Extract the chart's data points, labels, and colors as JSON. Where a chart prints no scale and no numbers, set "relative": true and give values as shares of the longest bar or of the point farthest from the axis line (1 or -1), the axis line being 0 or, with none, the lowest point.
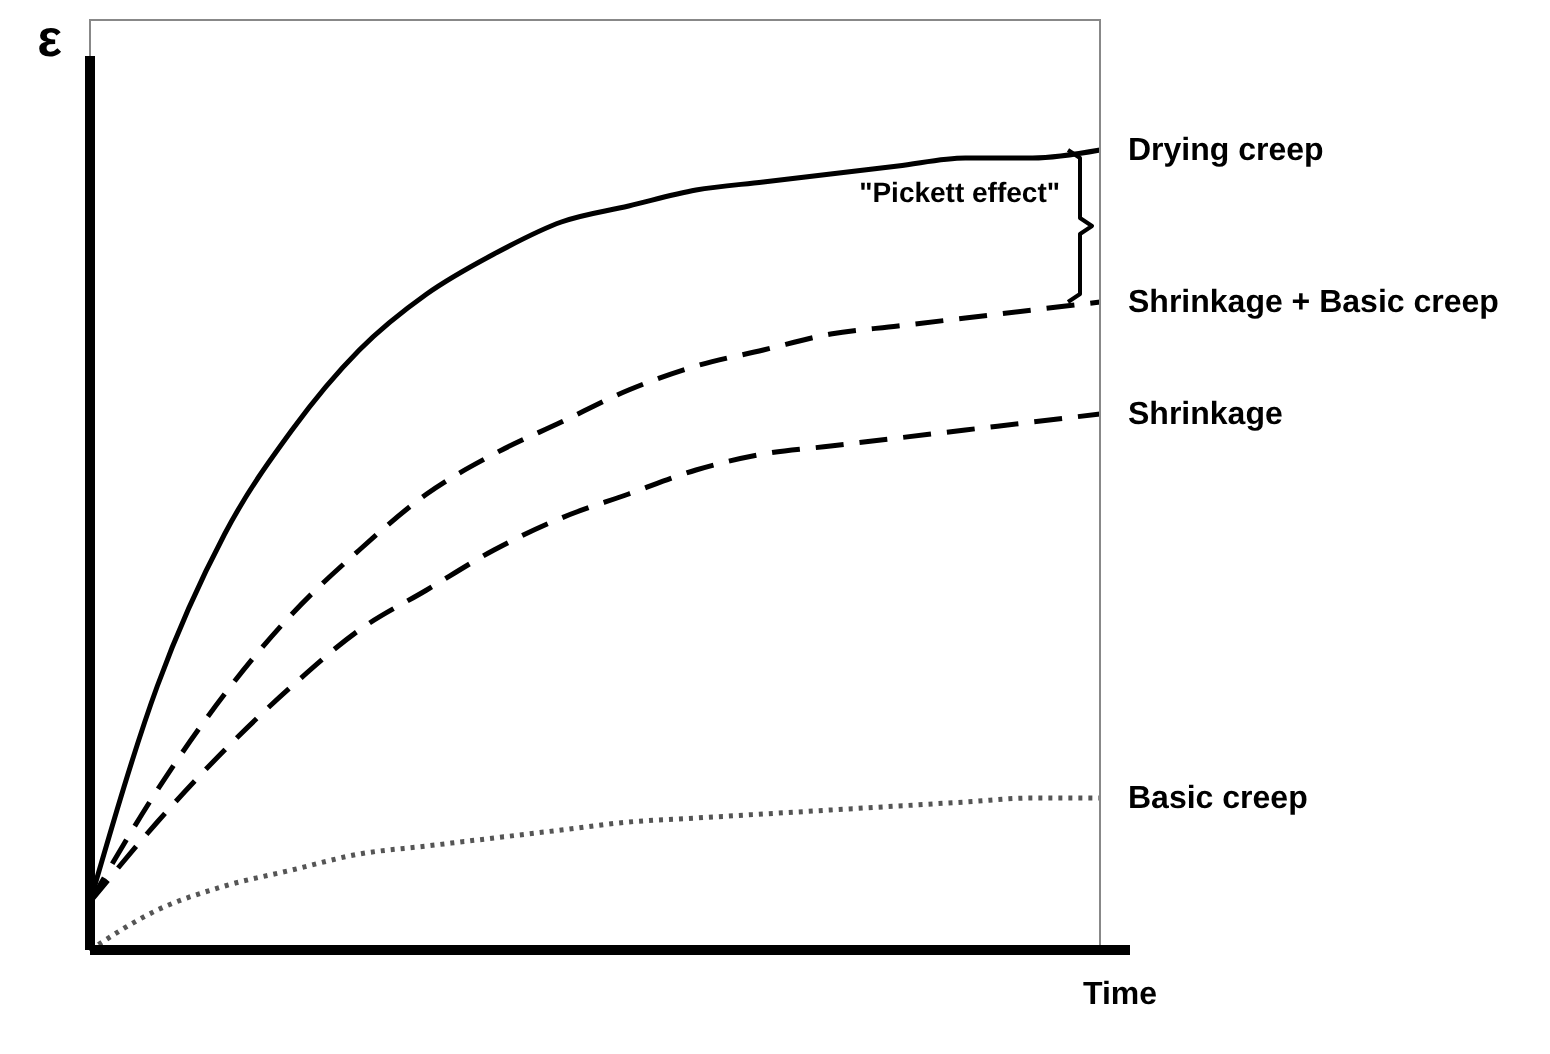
{
  "chart_data": {
    "type": "line",
    "relative": true,
    "xlabel": "Time",
    "ylabel": "ε",
    "tick_labels": false,
    "legend": false,
    "grid": false,
    "categories": [
      null,
      null,
      null,
      null,
      null,
      null,
      null,
      null,
      null,
      null,
      null,
      null,
      null,
      null,
      null,
      null
    ],
    "series": [
      {
        "name": "Drying creep",
        "color": "#000000",
        "line_style": "solid",
        "values": [
          0.06,
          0.33,
          0.52,
          0.65,
          0.75,
          0.82,
          0.87,
          0.91,
          0.93,
          0.95,
          0.96,
          0.97,
          0.98,
          0.99,
          0.99,
          1.0
        ]
      },
      {
        "name": "Shrinkage + Basic creep",
        "color": "#000000",
        "line_style": "dashed",
        "values": [
          0.06,
          0.2,
          0.32,
          0.42,
          0.5,
          0.57,
          0.62,
          0.66,
          0.7,
          0.73,
          0.75,
          0.77,
          0.78,
          0.79,
          0.8,
          0.81
        ]
      },
      {
        "name": "Shrinkage",
        "color": "#000000",
        "line_style": "dashed",
        "values": [
          0.06,
          0.16,
          0.25,
          0.33,
          0.4,
          0.45,
          0.5,
          0.54,
          0.57,
          0.6,
          0.62,
          0.63,
          0.64,
          0.65,
          0.66,
          0.67
        ]
      },
      {
        "name": "Basic creep",
        "color": "#555555",
        "line_style": "dotted",
        "values": [
          0.0,
          0.05,
          0.08,
          0.1,
          0.12,
          0.13,
          0.14,
          0.15,
          0.16,
          0.165,
          0.17,
          0.175,
          0.18,
          0.185,
          0.19,
          0.19
        ]
      }
    ],
    "annotations": [
      "\"Pickett effect\""
    ]
  }
}
